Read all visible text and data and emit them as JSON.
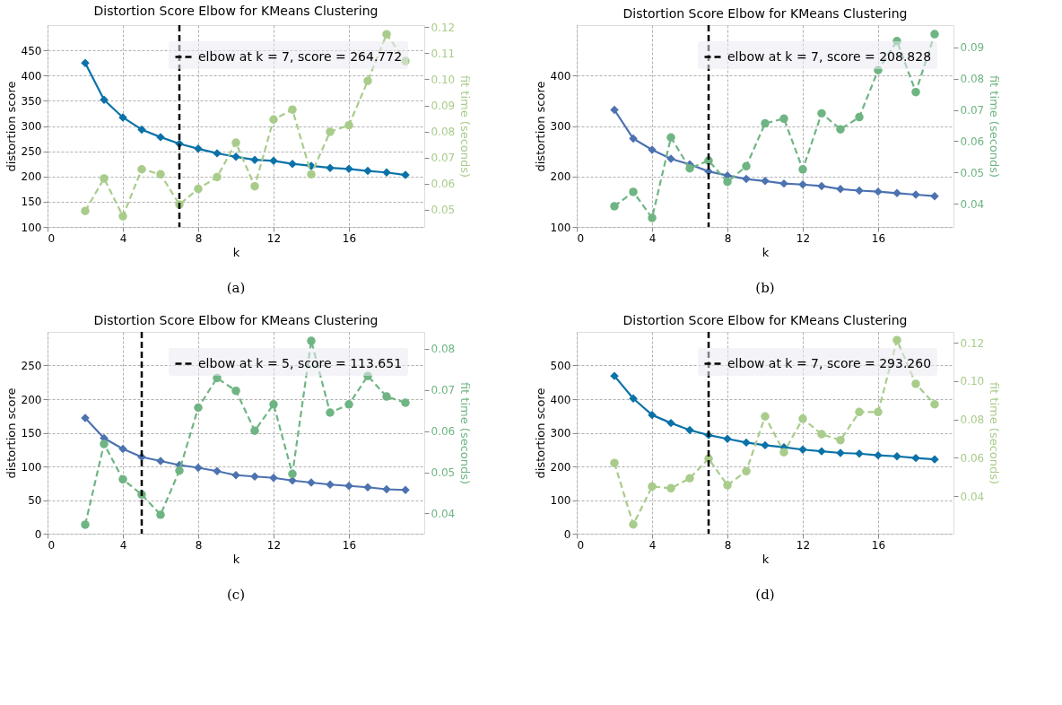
{
  "chart_data": [
    {
      "type": "line",
      "title": "Distortion Score Elbow for KMeans Clustering",
      "xlabel": "k",
      "ylabel": "distortion score",
      "y2label": "fit time (seconds)",
      "x": [
        2,
        3,
        4,
        5,
        6,
        7,
        8,
        9,
        10,
        11,
        12,
        13,
        14,
        15,
        16,
        17,
        18,
        19
      ],
      "xlim": [
        0,
        20
      ],
      "xticks": [
        0,
        4,
        8,
        12,
        16
      ],
      "ylim": [
        100,
        500
      ],
      "yticks": [
        100,
        150,
        200,
        250,
        300,
        350,
        400,
        450
      ],
      "y2lim": [
        0.0434,
        0.1208
      ],
      "y2ticks": [
        0.05,
        0.06,
        0.07,
        0.08,
        0.09,
        {
          "value": 0.1,
          "label": "0.10"
        },
        0.11,
        0.12
      ],
      "series": [
        {
          "color": "#0a72a8",
          "marker": "diamond",
          "line_style": "solid",
          "values": [
            425,
            352,
            317,
            293,
            278,
            265,
            255,
            246,
            239,
            233,
            231,
            225,
            221,
            217,
            215,
            211,
            208,
            203
          ]
        },
        {
          "color": "#a9cc8b",
          "marker": "circle",
          "line_style": "dashed",
          "axis": "y2",
          "values": [
            0.0495,
            0.062,
            0.0475,
            0.0655,
            0.0636,
            0.052,
            0.058,
            0.0625,
            0.0757,
            0.059,
            0.0846,
            0.0884,
            0.0636,
            0.0799,
            0.0824,
            0.0994,
            0.1173,
            0.107
          ]
        }
      ],
      "ref_lines": [
        {
          "axis": "x",
          "value": 7,
          "label": "elbow at k = 7, score = 264.772",
          "color": "#000000",
          "line_style": "dashed"
        }
      ],
      "legend": "top right",
      "grid": true,
      "annotations": [
        "(a)"
      ]
    },
    {
      "type": "line",
      "title": "Distortion Score Elbow for KMeans Clustering",
      "xlabel": "k",
      "ylabel": "distortion score",
      "y2label": "fit time (seconds)",
      "x": [
        2,
        3,
        4,
        5,
        6,
        7,
        8,
        9,
        10,
        11,
        12,
        13,
        14,
        15,
        16,
        17,
        18,
        19
      ],
      "xlim": [
        0,
        20
      ],
      "xticks": [
        0,
        4,
        8,
        12,
        16
      ],
      "ylim": [
        100,
        500
      ],
      "yticks": [
        100,
        200,
        300,
        400
      ],
      "y2lim": [
        0.0326,
        0.0971
      ],
      "y2ticks": [
        0.04,
        0.05,
        0.06,
        0.07,
        0.08,
        0.09
      ],
      "series": [
        {
          "color": "#4c72b0",
          "marker": "diamond",
          "line_style": "solid",
          "values": [
            332,
            275,
            253,
            235,
            224,
            210,
            202,
            195,
            191,
            186,
            184,
            181,
            175,
            172,
            170,
            167,
            164,
            161
          ]
        },
        {
          "color": "#6fb583",
          "marker": "circle",
          "line_style": "dashed",
          "axis": "y2",
          "values": [
            0.0392,
            0.0438,
            0.0355,
            0.0612,
            0.0513,
            0.0538,
            0.047,
            0.052,
            0.0657,
            0.0672,
            0.051,
            0.0689,
            0.0638,
            0.0677,
            0.0827,
            0.092,
            0.0757,
            0.0942
          ]
        }
      ],
      "ref_lines": [
        {
          "axis": "x",
          "value": 7,
          "label": "elbow at k = 7, score = 208.828",
          "color": "#000000",
          "line_style": "dashed"
        }
      ],
      "legend": "top right",
      "grid": true,
      "annotations": [
        "(b)"
      ]
    },
    {
      "type": "line",
      "title": "Distortion Score Elbow for KMeans Clustering",
      "xlabel": "k",
      "ylabel": "distortion score",
      "y2label": "fit time (seconds)",
      "x": [
        2,
        3,
        4,
        5,
        6,
        7,
        8,
        9,
        10,
        11,
        12,
        13,
        14,
        15,
        16,
        17,
        18,
        19
      ],
      "xlim": [
        0,
        20
      ],
      "xticks": [
        0,
        4,
        8,
        12,
        16
      ],
      "ylim": [
        0,
        300
      ],
      "yticks": [
        0,
        50,
        100,
        150,
        200,
        250
      ],
      "y2lim": [
        0.0351,
        0.0841
      ],
      "y2ticks": [
        0.04,
        0.05,
        0.06,
        0.07,
        0.08
      ],
      "series": [
        {
          "color": "#4c72b0",
          "marker": "diamond",
          "line_style": "solid",
          "values": [
            172,
            142,
            126,
            114,
            108,
            102,
            98,
            93,
            87,
            85,
            83,
            79,
            76,
            73,
            71,
            69,
            66,
            65
          ]
        },
        {
          "color": "#6fb583",
          "marker": "circle",
          "line_style": "dashed",
          "axis": "y2",
          "values": [
            0.0373,
            0.0569,
            0.0483,
            0.0446,
            0.0397,
            0.0504,
            0.0657,
            0.0729,
            0.0698,
            0.0601,
            0.0665,
            0.0496,
            0.0819,
            0.0645,
            0.0665,
            0.0734,
            0.0684,
            0.0669
          ]
        }
      ],
      "ref_lines": [
        {
          "axis": "x",
          "value": 5,
          "label": "elbow at k = 5, score = 113.651",
          "color": "#000000",
          "line_style": "dashed"
        }
      ],
      "legend": "top right",
      "grid": true,
      "annotations": [
        "(c)"
      ]
    },
    {
      "type": "line",
      "title": "Distortion Score Elbow for KMeans Clustering",
      "xlabel": "k",
      "ylabel": "distortion score",
      "y2label": "fit time (seconds)",
      "x": [
        2,
        3,
        4,
        5,
        6,
        7,
        8,
        9,
        10,
        11,
        12,
        13,
        14,
        15,
        16,
        17,
        18,
        19
      ],
      "xlim": [
        0,
        20
      ],
      "xticks": [
        0,
        4,
        8,
        12,
        16
      ],
      "ylim": [
        0,
        600
      ],
      "yticks": [
        0,
        100,
        200,
        300,
        400,
        500
      ],
      "y2lim": [
        0.0204,
        0.1257
      ],
      "y2ticks": [
        0.04,
        0.06,
        0.08,
        {
          "value": 0.1,
          "label": "0.10"
        },
        0.12
      ],
      "series": [
        {
          "color": "#0a72a8",
          "marker": "diamond",
          "line_style": "solid",
          "values": [
            469,
            402,
            353,
            329,
            308,
            293,
            282,
            271,
            263,
            257,
            250,
            245,
            240,
            238,
            233,
            230,
            225,
            221
          ]
        },
        {
          "color": "#a9cc8b",
          "marker": "circle",
          "line_style": "dashed",
          "axis": "y2",
          "values": [
            0.0573,
            0.0252,
            0.045,
            0.0441,
            0.0493,
            0.0596,
            0.0457,
            0.053,
            0.0816,
            0.0629,
            0.0804,
            0.0723,
            0.0692,
            0.0839,
            0.0839,
            0.1214,
            0.0986,
            0.0879
          ]
        }
      ],
      "ref_lines": [
        {
          "axis": "x",
          "value": 7,
          "label": "elbow at k = 7, score = 293.260",
          "color": "#000000",
          "line_style": "dashed"
        }
      ],
      "legend": "top right",
      "grid": true,
      "annotations": [
        "(d)"
      ]
    }
  ]
}
